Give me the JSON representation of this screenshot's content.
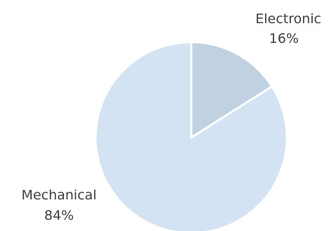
{
  "chart_data": {
    "type": "pie",
    "slices": [
      {
        "label": "Electronic",
        "value": 16,
        "value_label": "16%",
        "color": "#c0d2e2"
      },
      {
        "label": "Mechanical",
        "value": 84,
        "value_label": "84%",
        "color": "#d3e3f3"
      }
    ],
    "start_angle_deg": 0,
    "direction": "clockwise"
  }
}
